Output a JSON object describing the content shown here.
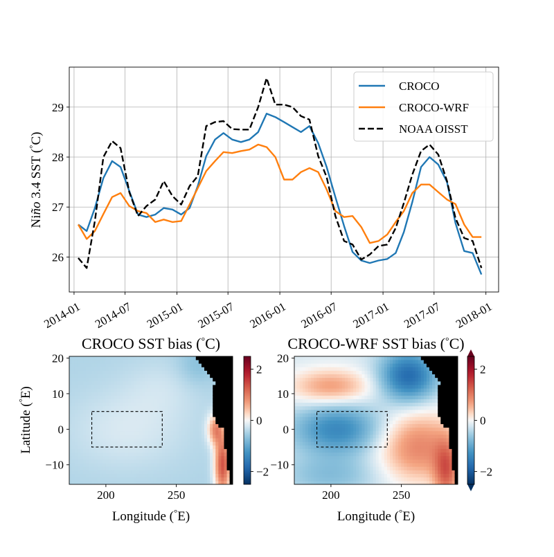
{
  "chart_data": [
    {
      "type": "line",
      "title": "",
      "xlabel": "",
      "ylabel": "Niño 3.4 SST (°C)",
      "ylabel_parts": [
        "Ni",
        "ño",
        " 3.4 SST (",
        "°",
        "C)"
      ],
      "x_range": [
        "2013-12-15",
        "2018-02-15"
      ],
      "ylim": [
        25.3,
        29.8
      ],
      "x_ticks": [
        "2014-01",
        "2014-07",
        "2015-01",
        "2015-07",
        "2016-01",
        "2016-07",
        "2017-01",
        "2017-07",
        "2018-01"
      ],
      "x_tick_labels": [
        "2014-01",
        "2014-07",
        "2015-01",
        "2015-07",
        "2016-01",
        "2016-07",
        "2017-01",
        "2017-07",
        "2018-01"
      ],
      "y_ticks": [
        26,
        27,
        28,
        29
      ],
      "y_tick_labels": [
        "26",
        "27",
        "28",
        "29"
      ],
      "grid": true,
      "legend": "top-right",
      "x": [
        "2014-01-16",
        "2014-02-15",
        "2014-03-16",
        "2014-04-15",
        "2014-05-16",
        "2014-06-15",
        "2014-07-16",
        "2014-08-16",
        "2014-09-15",
        "2014-10-16",
        "2014-11-15",
        "2014-12-16",
        "2015-01-16",
        "2015-02-15",
        "2015-03-16",
        "2015-04-15",
        "2015-05-16",
        "2015-06-15",
        "2015-07-16",
        "2015-08-16",
        "2015-09-15",
        "2015-10-16",
        "2015-11-15",
        "2015-12-16",
        "2016-01-16",
        "2016-02-15",
        "2016-03-16",
        "2016-04-15",
        "2016-05-16",
        "2016-06-15",
        "2016-07-16",
        "2016-08-16",
        "2016-09-15",
        "2016-10-16",
        "2016-11-15",
        "2016-12-16",
        "2017-01-16",
        "2017-02-15",
        "2017-03-16",
        "2017-04-15",
        "2017-05-16",
        "2017-06-15",
        "2017-07-16",
        "2017-08-16",
        "2017-09-15",
        "2017-10-16",
        "2017-11-15",
        "2017-12-16"
      ],
      "series": [
        {
          "name": "CROCO",
          "color": "#1f77b4",
          "dash": "solid",
          "values": [
            26.65,
            26.52,
            26.98,
            27.58,
            27.92,
            27.8,
            27.32,
            26.85,
            26.8,
            26.85,
            26.98,
            26.95,
            26.85,
            26.98,
            27.42,
            28.02,
            28.35,
            28.48,
            28.35,
            28.3,
            28.35,
            28.5,
            28.87,
            28.8,
            28.7,
            28.6,
            28.5,
            28.62,
            28.28,
            27.8,
            27.2,
            26.62,
            26.1,
            25.93,
            25.88,
            25.93,
            25.96,
            26.08,
            26.5,
            27.1,
            27.8,
            28.0,
            27.85,
            27.5,
            26.68,
            26.12,
            26.08,
            25.65
          ]
        },
        {
          "name": "CROCO-WRF",
          "color": "#ff7f0e",
          "dash": "solid",
          "values": [
            26.65,
            26.36,
            26.52,
            26.86,
            27.2,
            27.28,
            27.02,
            26.92,
            26.88,
            26.7,
            26.75,
            26.7,
            26.72,
            27.05,
            27.38,
            27.72,
            27.92,
            28.1,
            28.08,
            28.12,
            28.15,
            28.25,
            28.2,
            28.0,
            27.55,
            27.55,
            27.7,
            27.78,
            27.7,
            27.35,
            26.92,
            26.8,
            26.82,
            26.6,
            26.28,
            26.32,
            26.45,
            26.7,
            26.92,
            27.28,
            27.45,
            27.45,
            27.3,
            27.15,
            27.06,
            26.65,
            26.4,
            26.4
          ]
        },
        {
          "name": "NOAA OISST",
          "color": "#000000",
          "dash": "dashed",
          "values": [
            25.98,
            25.78,
            26.72,
            28.0,
            28.32,
            28.18,
            27.3,
            26.82,
            27.02,
            27.15,
            27.52,
            27.22,
            27.05,
            27.42,
            27.62,
            28.62,
            28.7,
            28.72,
            28.56,
            28.55,
            28.55,
            29.0,
            29.58,
            29.05,
            29.05,
            29.0,
            28.82,
            28.75,
            28.02,
            27.6,
            26.82,
            26.32,
            26.25,
            25.95,
            26.05,
            26.22,
            26.25,
            26.58,
            27.08,
            27.65,
            28.12,
            28.25,
            28.05,
            27.52,
            26.78,
            26.38,
            26.32,
            25.78
          ]
        }
      ],
      "legend_entries": [
        "CROCO",
        "CROCO-WRF",
        "NOAA OISST"
      ]
    },
    {
      "type": "heatmap",
      "title": "CROCO SST bias (°C)",
      "title_parts": [
        "CROCO SST bias (",
        "°",
        "C)"
      ],
      "xlabel": "Longitude (°E)",
      "xlabel_parts": [
        "Longitude (",
        "°",
        "E)"
      ],
      "ylabel": "Latitude (°E)",
      "ylabel_parts": [
        "Latitude (",
        "°",
        "E)"
      ],
      "xlim": [
        174,
        290
      ],
      "ylim": [
        -15.5,
        20.5
      ],
      "x_ticks": [
        200,
        250
      ],
      "x_tick_labels": [
        "200",
        "250"
      ],
      "y_ticks": [
        -10,
        0,
        10,
        20
      ],
      "y_tick_labels": [
        "−10",
        "0",
        "10",
        "20"
      ],
      "colorbar": {
        "colormap": "RdBu_r",
        "range": [
          -2.5,
          2.5
        ],
        "ticks": [
          -2,
          0,
          2
        ],
        "tick_labels": [
          "−2",
          "0",
          "2"
        ],
        "extend": "neither"
      },
      "box": {
        "lon": [
          190,
          240
        ],
        "lat": [
          -5,
          5
        ],
        "style": "dashed"
      },
      "land_color": "#000000",
      "pattern": "weak negative bias (-0.3 to -0.5) over most of the domain, near-zero in interior, positive bias up to about +2 along the eastern coast near 270-285°E south of 0°"
    },
    {
      "type": "heatmap",
      "title": "CROCO-WRF SST bias (°C)",
      "title_parts": [
        "CROCO-WRF SST bias (",
        "°",
        "C)"
      ],
      "xlabel": "Longitude (°E)",
      "xlabel_parts": [
        "Longitude (",
        "°",
        "E)"
      ],
      "ylabel": "",
      "xlim": [
        174,
        290
      ],
      "ylim": [
        -15.5,
        20.5
      ],
      "x_ticks": [
        200,
        250
      ],
      "x_tick_labels": [
        "200",
        "250"
      ],
      "y_ticks": [
        -10,
        0,
        10,
        20
      ],
      "y_tick_labels": [
        "−10",
        "0",
        "10",
        "20"
      ],
      "colorbar": {
        "colormap": "RdBu_r",
        "range": [
          -2.5,
          2.5
        ],
        "ticks": [
          -2,
          0,
          2
        ],
        "tick_labels": [
          "−2",
          "0",
          "2"
        ],
        "extend": "both"
      },
      "box": {
        "lon": [
          190,
          240
        ],
        "lat": [
          -5,
          5
        ],
        "style": "dashed"
      },
      "land_color": "#000000",
      "pattern": "cold bias (-1 to -2) along equator west of 240°E and in the north-east near 10-15°N; warm bias (+0.5 to +1.5) around 10-15°N in the west and strongly warm (+1 to +2.5) in the south-east near 250-285°E below 0°"
    }
  ]
}
